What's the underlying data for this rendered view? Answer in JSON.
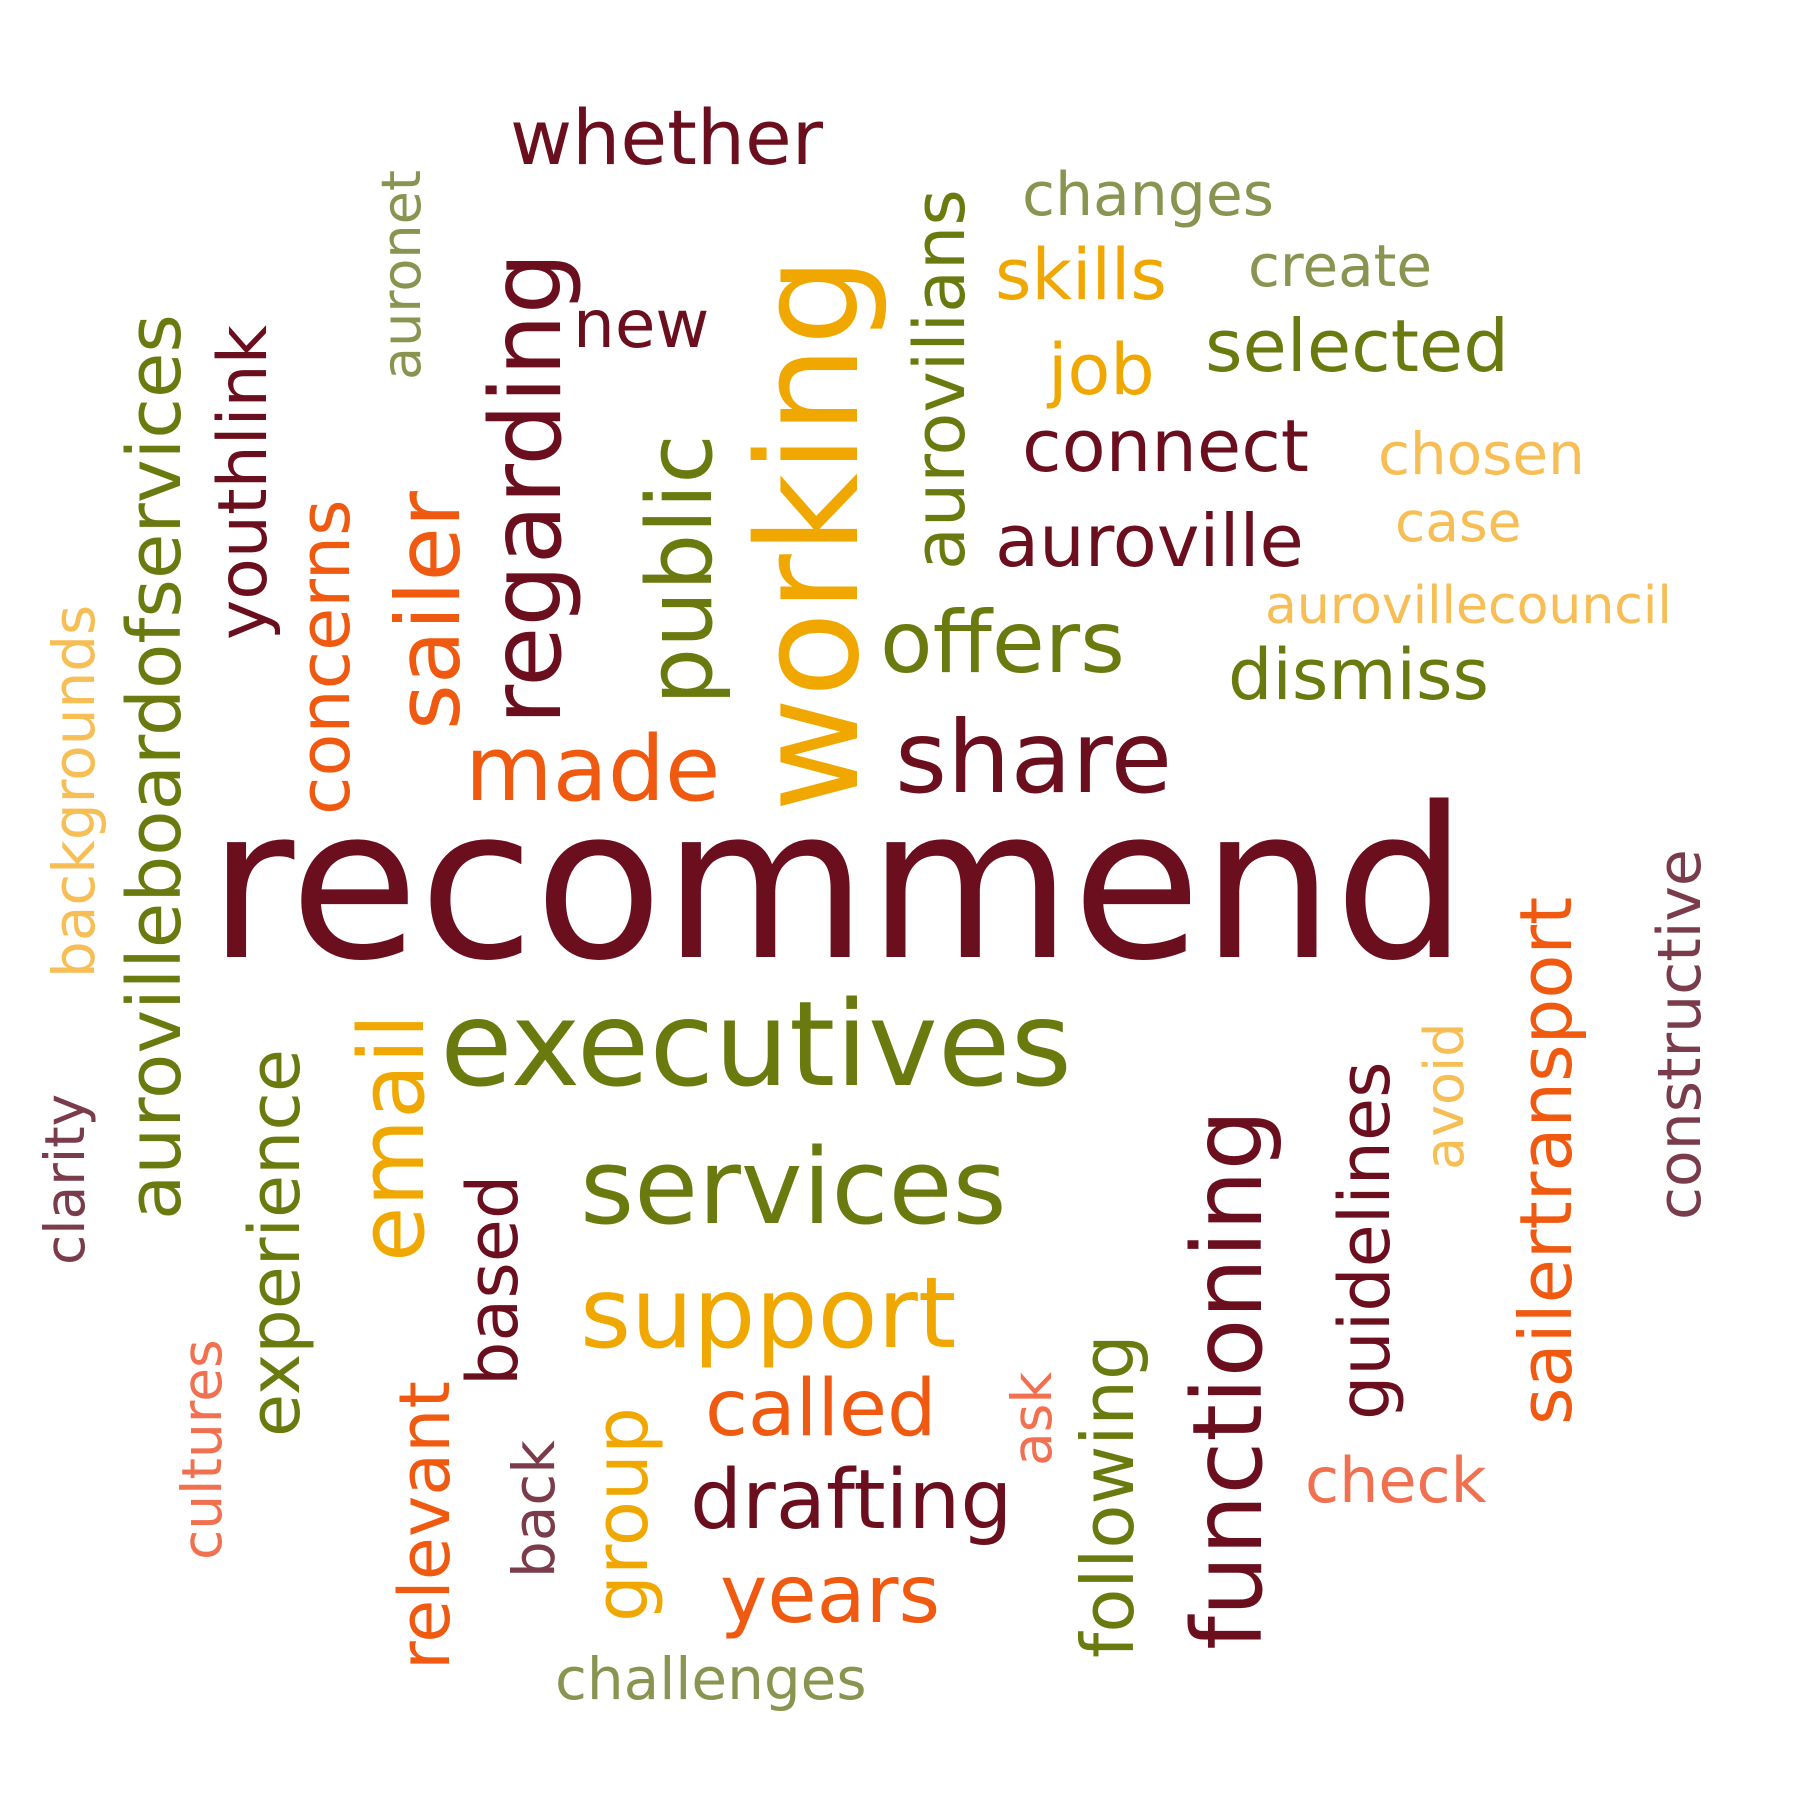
{
  "words": {
    "recommend": {
      "text": "recommend",
      "color": "#6B0F1E"
    },
    "executives": {
      "text": "executives",
      "color": "#6B7A0E"
    },
    "services": {
      "text": "services",
      "color": "#6B7A0E"
    },
    "support": {
      "text": "support",
      "color": "#F0A800"
    },
    "share": {
      "text": "share",
      "color": "#6B0F1E"
    },
    "made": {
      "text": "made",
      "color": "#F05A10"
    },
    "offers": {
      "text": "offers",
      "color": "#6B7A0E"
    },
    "drafting": {
      "text": "drafting",
      "color": "#6B0F1E"
    },
    "years": {
      "text": "years",
      "color": "#F05A10"
    },
    "called": {
      "text": "called",
      "color": "#F05A10"
    },
    "auroville": {
      "text": "auroville",
      "color": "#6B0F1E"
    },
    "connect": {
      "text": "connect",
      "color": "#6B0F1E"
    },
    "selected": {
      "text": "selected",
      "color": "#6B7A0E"
    },
    "dismiss": {
      "text": "dismiss",
      "color": "#6B7A0E"
    },
    "whether": {
      "text": "whether",
      "color": "#6B0F1E"
    },
    "new": {
      "text": "new",
      "color": "#6B0F1E"
    },
    "skills": {
      "text": "skills",
      "color": "#F0A800"
    },
    "job": {
      "text": "job",
      "color": "#F0A800"
    },
    "changes": {
      "text": "changes",
      "color": "#8A9450"
    },
    "create": {
      "text": "create",
      "color": "#8A9450"
    },
    "chosen": {
      "text": "chosen",
      "color": "#F6BE55"
    },
    "case": {
      "text": "case",
      "color": "#F6BE55"
    },
    "aurovillecouncil": {
      "text": "aurovillecouncil",
      "color": "#F6BE55"
    },
    "check": {
      "text": "check",
      "color": "#F07050"
    },
    "challenges": {
      "text": "challenges",
      "color": "#8A9450"
    },
    "working": {
      "text": "working",
      "color": "#F0A800"
    },
    "public": {
      "text": "public",
      "color": "#6B7A0E"
    },
    "regarding": {
      "text": "regarding",
      "color": "#6B0F1E"
    },
    "sailer": {
      "text": "sailer",
      "color": "#F05A10"
    },
    "concerns": {
      "text": "concerns",
      "color": "#F05A10"
    },
    "youthlink": {
      "text": "youthlink",
      "color": "#6B0F1E"
    },
    "auronet": {
      "text": "auronet",
      "color": "#8A9450"
    },
    "aurovilians": {
      "text": "aurovilians",
      "color": "#6B7A0E"
    },
    "aurovilleboardofservices": {
      "text": "aurovilleboardofservices",
      "color": "#6B7A0E"
    },
    "backgrounds": {
      "text": "backgrounds",
      "color": "#F6BE55"
    },
    "clarity": {
      "text": "clarity",
      "color": "#7A3B4B"
    },
    "experience": {
      "text": "experience",
      "color": "#6B7A0E"
    },
    "email": {
      "text": "email",
      "color": "#F0A800"
    },
    "based": {
      "text": "based",
      "color": "#6B0F1E"
    },
    "relevant": {
      "text": "relevant",
      "color": "#F05A10"
    },
    "cultures": {
      "text": "cultures",
      "color": "#F07050"
    },
    "back": {
      "text": "back",
      "color": "#7A3B4B"
    },
    "group": {
      "text": "group",
      "color": "#F0A800"
    },
    "ask": {
      "text": "ask",
      "color": "#F07050"
    },
    "following": {
      "text": "following",
      "color": "#6B7A0E"
    },
    "functioning": {
      "text": "functioning",
      "color": "#6B0F1E"
    },
    "guidelines": {
      "text": "guidelines",
      "color": "#6B0F1E"
    },
    "avoid": {
      "text": "avoid",
      "color": "#F6BE55"
    },
    "sailertransport": {
      "text": "sailertransport",
      "color": "#F05A10"
    },
    "constructive": {
      "text": "constructive",
      "color": "#7A3B4B"
    }
  }
}
